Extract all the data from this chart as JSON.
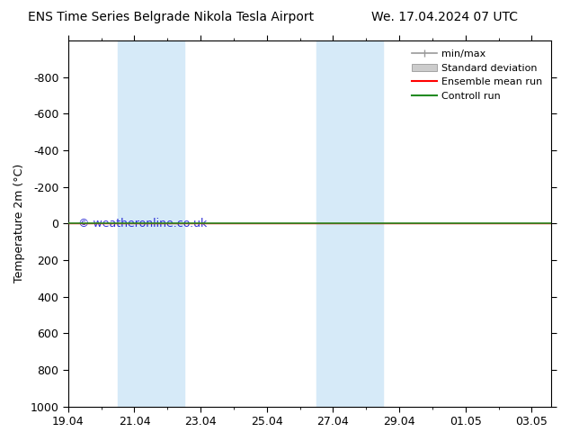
{
  "title_left": "ENS Time Series Belgrade Nikola Tesla Airport",
  "title_right": "We. 17.04.2024 07 UTC",
  "ylabel": "Temperature 2m (°C)",
  "watermark": "© weatheronline.co.uk",
  "ylim": [
    -1000,
    1000
  ],
  "yticks": [
    -800,
    -600,
    -400,
    -200,
    0,
    200,
    400,
    600,
    800,
    1000
  ],
  "xtick_labels": [
    "19.04",
    "21.04",
    "23.04",
    "25.04",
    "27.04",
    "29.04",
    "01.05",
    "03.05"
  ],
  "xtick_positions": [
    0,
    2,
    4,
    6,
    8,
    10,
    12,
    14
  ],
  "xlim": [
    0,
    14.6
  ],
  "shade_bands": [
    {
      "start": 1.5,
      "end": 3.5
    },
    {
      "start": 7.5,
      "end": 9.5
    }
  ],
  "shade_color": "#d6eaf8",
  "control_run_value": 0,
  "ensemble_mean_value": 0,
  "control_run_color": "#228B22",
  "ensemble_mean_color": "#ff0000",
  "minmax_color": "#999999",
  "std_dev_color": "#cccccc",
  "background_color": "#ffffff",
  "legend_entries": [
    "min/max",
    "Standard deviation",
    "Ensemble mean run",
    "Controll run"
  ],
  "title_fontsize": 10,
  "axis_fontsize": 9,
  "tick_fontsize": 9
}
